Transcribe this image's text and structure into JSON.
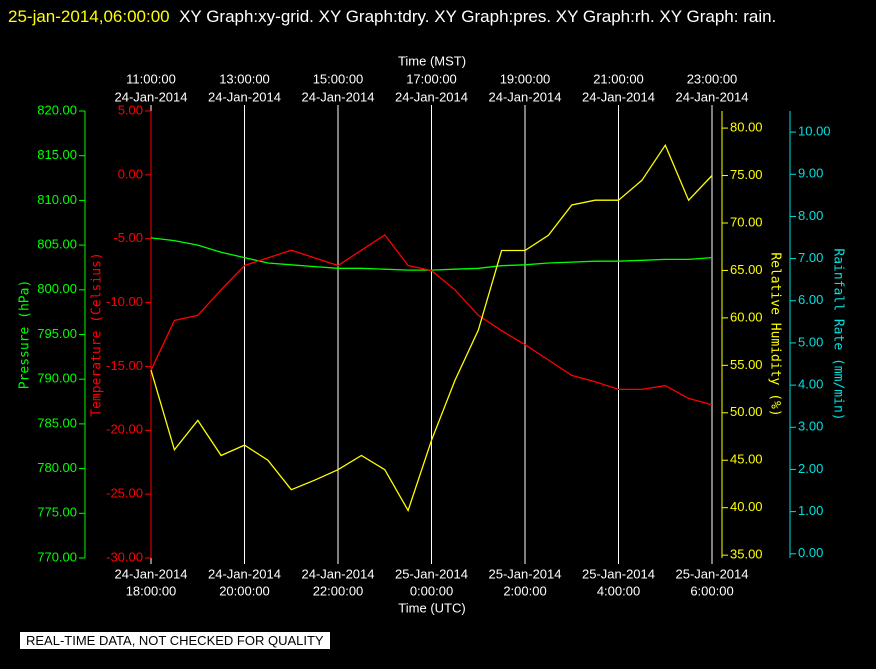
{
  "chart_data": {
    "type": "line",
    "title_time": "25-jan-2014,06:00:00",
    "title": "XY Graph:xy-grid.  XY Graph:tdry.  XY Graph:pres.  XY Graph:rh.  XY Graph: rain.",
    "footer": "REAL-TIME DATA, NOT CHECKED FOR QUALITY",
    "grid": true,
    "xlabel": "Time (UTC)",
    "x2label": "Time (MST)",
    "xlim": [
      "2014-01-24T18:00",
      "2014-01-25T06:00"
    ],
    "xticks": [
      {
        "value": "2014-01-24T18:00",
        "date": "24-Jan-2014",
        "label": "18:00:00"
      },
      {
        "value": "2014-01-24T20:00",
        "date": "24-Jan-2014",
        "label": "20:00:00"
      },
      {
        "value": "2014-01-24T22:00",
        "date": "24-Jan-2014",
        "label": "22:00:00"
      },
      {
        "value": "2014-01-25T00:00",
        "date": "25-Jan-2014",
        "label": "0:00:00"
      },
      {
        "value": "2014-01-25T02:00",
        "date": "25-Jan-2014",
        "label": "2:00:00"
      },
      {
        "value": "2014-01-25T04:00",
        "date": "25-Jan-2014",
        "label": "4:00:00"
      },
      {
        "value": "2014-01-25T06:00",
        "date": "25-Jan-2014",
        "label": "6:00:00"
      }
    ],
    "x2ticks": [
      {
        "value": "2014-01-24T18:00",
        "date": "24-Jan-2014",
        "label": "11:00:00"
      },
      {
        "value": "2014-01-24T20:00",
        "date": "24-Jan-2014",
        "label": "13:00:00"
      },
      {
        "value": "2014-01-24T22:00",
        "date": "24-Jan-2014",
        "label": "15:00:00"
      },
      {
        "value": "2014-01-25T00:00",
        "date": "24-Jan-2014",
        "label": "17:00:00"
      },
      {
        "value": "2014-01-25T02:00",
        "date": "24-Jan-2014",
        "label": "19:00:00"
      },
      {
        "value": "2014-01-25T04:00",
        "date": "24-Jan-2014",
        "label": "21:00:00"
      },
      {
        "value": "2014-01-25T06:00",
        "date": "24-Jan-2014",
        "label": "23:00:00"
      }
    ],
    "axes": [
      {
        "label": "Pressure (hPa)",
        "color": "#00ff00",
        "side": "left",
        "lim": [
          770,
          820
        ],
        "ticks": [
          {
            "value": 770,
            "label": "770.00"
          },
          {
            "value": 775,
            "label": "775.00"
          },
          {
            "value": 780,
            "label": "780.00"
          },
          {
            "value": 785,
            "label": "785.00"
          },
          {
            "value": 790,
            "label": "790.00"
          },
          {
            "value": 795,
            "label": "795.00"
          },
          {
            "value": 800,
            "label": "800.00"
          },
          {
            "value": 805,
            "label": "805.00"
          },
          {
            "value": 810,
            "label": "810.00"
          },
          {
            "value": 815,
            "label": "815.00"
          },
          {
            "value": 820,
            "label": "820.00"
          }
        ]
      },
      {
        "label": "Temperature (Celsius)",
        "color": "#ff0000",
        "side": "left",
        "lim": [
          -30,
          5
        ],
        "ticks": [
          {
            "value": -30,
            "label": "-30.00"
          },
          {
            "value": -25,
            "label": "-25.00"
          },
          {
            "value": -20,
            "label": "-20.00"
          },
          {
            "value": -15,
            "label": "-15.00"
          },
          {
            "value": -10,
            "label": "-10.00"
          },
          {
            "value": -5,
            "label": "-5.00"
          },
          {
            "value": 0,
            "label": "0.00"
          },
          {
            "value": 5,
            "label": "5.00"
          }
        ]
      },
      {
        "label": "Relative Humidity (%)",
        "color": "#ffff00",
        "side": "right",
        "lim": [
          34.7,
          81.8
        ],
        "ticks": [
          {
            "value": 35,
            "label": "35.00"
          },
          {
            "value": 40,
            "label": "40.00"
          },
          {
            "value": 45,
            "label": "45.00"
          },
          {
            "value": 50,
            "label": "50.00"
          },
          {
            "value": 55,
            "label": "55.00"
          },
          {
            "value": 60,
            "label": "60.00"
          },
          {
            "value": 65,
            "label": "65.00"
          },
          {
            "value": 70,
            "label": "70.00"
          },
          {
            "value": 75,
            "label": "75.00"
          },
          {
            "value": 80,
            "label": "80.00"
          }
        ]
      },
      {
        "label": "Rainfall Rate (mm/min)",
        "color": "#00e0e0",
        "side": "right",
        "lim": [
          -0.1,
          10.5
        ],
        "ticks": [
          {
            "value": 0,
            "label": "0.00"
          },
          {
            "value": 1,
            "label": "1.00"
          },
          {
            "value": 2,
            "label": "2.00"
          },
          {
            "value": 3,
            "label": "3.00"
          },
          {
            "value": 4,
            "label": "4.00"
          },
          {
            "value": 5,
            "label": "5.00"
          },
          {
            "value": 6,
            "label": "6.00"
          },
          {
            "value": 7,
            "label": "7.00"
          },
          {
            "value": 8,
            "label": "8.00"
          },
          {
            "value": 9,
            "label": "9.00"
          },
          {
            "value": 10,
            "label": "10.00"
          }
        ]
      }
    ],
    "x": [
      "2014-01-24T18:00",
      "2014-01-24T18:30",
      "2014-01-24T19:00",
      "2014-01-24T19:30",
      "2014-01-24T20:00",
      "2014-01-24T20:30",
      "2014-01-24T21:00",
      "2014-01-24T21:30",
      "2014-01-24T22:00",
      "2014-01-24T22:30",
      "2014-01-24T23:00",
      "2014-01-24T23:30",
      "2014-01-25T00:00",
      "2014-01-25T00:30",
      "2014-01-25T01:00",
      "2014-01-25T01:30",
      "2014-01-25T02:00",
      "2014-01-25T02:30",
      "2014-01-25T03:00",
      "2014-01-25T03:30",
      "2014-01-25T04:00",
      "2014-01-25T04:30",
      "2014-01-25T05:00",
      "2014-01-25T05:30",
      "2014-01-25T06:00"
    ],
    "series": [
      {
        "name": "pres",
        "color": "#00ff00",
        "axis": 0,
        "values": [
          805.8,
          805.5,
          805.0,
          804.2,
          803.6,
          803.0,
          802.8,
          802.6,
          802.4,
          802.4,
          802.3,
          802.2,
          802.2,
          802.3,
          802.4,
          802.7,
          802.8,
          803.0,
          803.1,
          803.2,
          803.2,
          803.3,
          803.4,
          803.4,
          803.6
        ]
      },
      {
        "name": "tdry",
        "color": "#ff0000",
        "axis": 1,
        "values": [
          -15.3,
          -11.4,
          -11.0,
          -9.0,
          -7.1,
          -6.5,
          -5.9,
          -6.5,
          -7.1,
          -5.9,
          -4.7,
          -7.1,
          -7.5,
          -9.0,
          -11.0,
          -12.2,
          -13.3,
          -14.5,
          -15.7,
          -16.2,
          -16.8,
          -16.8,
          -16.5,
          -17.5,
          -18.0
        ]
      },
      {
        "name": "rh",
        "color": "#ffff00",
        "axis": 2,
        "values": [
          54.5,
          46.1,
          49.2,
          45.5,
          46.6,
          45.0,
          41.9,
          42.9,
          44.0,
          45.5,
          44.0,
          39.7,
          47.1,
          53.4,
          58.7,
          67.1,
          67.1,
          68.7,
          71.9,
          72.4,
          72.4,
          74.5,
          78.2,
          72.4,
          75.0
        ]
      }
    ]
  }
}
